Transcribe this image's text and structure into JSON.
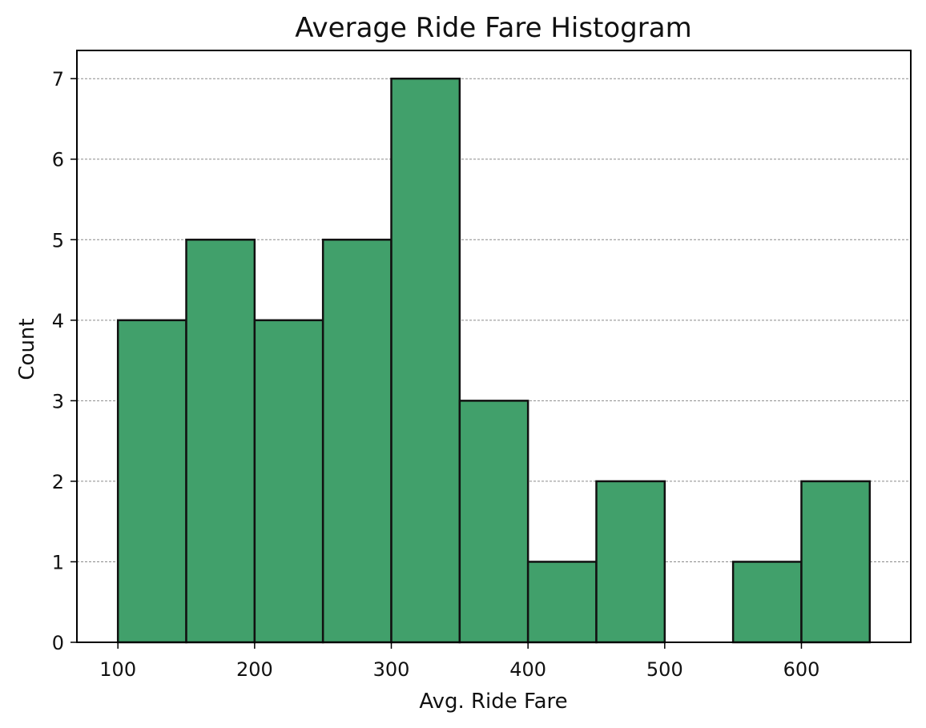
{
  "chart_data": {
    "type": "bar",
    "title": "Average Ride Fare Histogram",
    "xlabel": "Avg. Ride Fare",
    "ylabel": "Count",
    "bins": [
      {
        "start": 100,
        "end": 150,
        "count": 4
      },
      {
        "start": 150,
        "end": 200,
        "count": 5
      },
      {
        "start": 200,
        "end": 250,
        "count": 4
      },
      {
        "start": 250,
        "end": 300,
        "count": 5
      },
      {
        "start": 300,
        "end": 350,
        "count": 7
      },
      {
        "start": 350,
        "end": 400,
        "count": 3
      },
      {
        "start": 400,
        "end": 450,
        "count": 1
      },
      {
        "start": 450,
        "end": 500,
        "count": 2
      },
      {
        "start": 500,
        "end": 550,
        "count": 0
      },
      {
        "start": 550,
        "end": 600,
        "count": 1
      },
      {
        "start": 600,
        "end": 650,
        "count": 2
      }
    ],
    "xlim": [
      70,
      680
    ],
    "ylim": [
      0,
      7.35
    ],
    "x_ticks": [
      100,
      200,
      300,
      400,
      500,
      600
    ],
    "y_ticks": [
      0,
      1,
      2,
      3,
      4,
      5,
      6,
      7
    ],
    "grid": "y",
    "legend": "none",
    "colors": {
      "bar_fill": "#41a06b",
      "bar_edge": "#111111",
      "grid": "#8a8a8a",
      "axes": "#000000"
    }
  }
}
